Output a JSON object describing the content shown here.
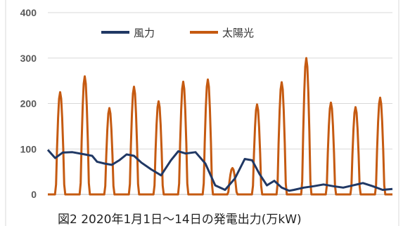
{
  "chart_data": {
    "type": "line",
    "title": "",
    "caption": "図2 2020年1月1日～14日の発電出力(万kW)",
    "xlabel": "",
    "ylabel": "",
    "ylim": [
      0,
      400
    ],
    "yticks": [
      "0",
      "100",
      "200",
      "300",
      "400"
    ],
    "grid": true,
    "legend_position": "top-left",
    "x": [
      0,
      0.5,
      1,
      1.5,
      2,
      2.5,
      3,
      3.5,
      4,
      4.5,
      5,
      5.5,
      6,
      6.5,
      7,
      7.5,
      8,
      8.5,
      9,
      9.5,
      10,
      10.5,
      11,
      11.5,
      12,
      12.5,
      13,
      13.5,
      14
    ],
    "series": [
      {
        "name": "風力",
        "color": "#203864",
        "x": [
          0,
          0.3,
          0.6,
          1.0,
          1.5,
          1.8,
          2.0,
          2.3,
          2.6,
          2.9,
          3.2,
          3.5,
          3.8,
          4.2,
          4.6,
          5.0,
          5.3,
          5.6,
          6.0,
          6.4,
          6.8,
          7.2,
          7.6,
          8.0,
          8.3,
          8.6,
          8.9,
          9.2,
          9.5,
          9.8,
          10.0,
          10.4,
          10.8,
          11.2,
          11.6,
          12.0,
          12.4,
          12.8,
          13.2,
          13.6,
          14.0
        ],
        "values": [
          98,
          80,
          92,
          93,
          88,
          85,
          72,
          68,
          65,
          75,
          88,
          85,
          70,
          55,
          42,
          75,
          95,
          90,
          93,
          68,
          20,
          10,
          35,
          78,
          75,
          45,
          20,
          30,
          15,
          8,
          10,
          15,
          18,
          22,
          18,
          15,
          20,
          25,
          18,
          10,
          12
        ]
      },
      {
        "name": "太陽光",
        "color": "#c55a11",
        "peaks": [
          225,
          260,
          190,
          237,
          205,
          248,
          253,
          58,
          198,
          247,
          300,
          202,
          192,
          213
        ]
      }
    ]
  }
}
